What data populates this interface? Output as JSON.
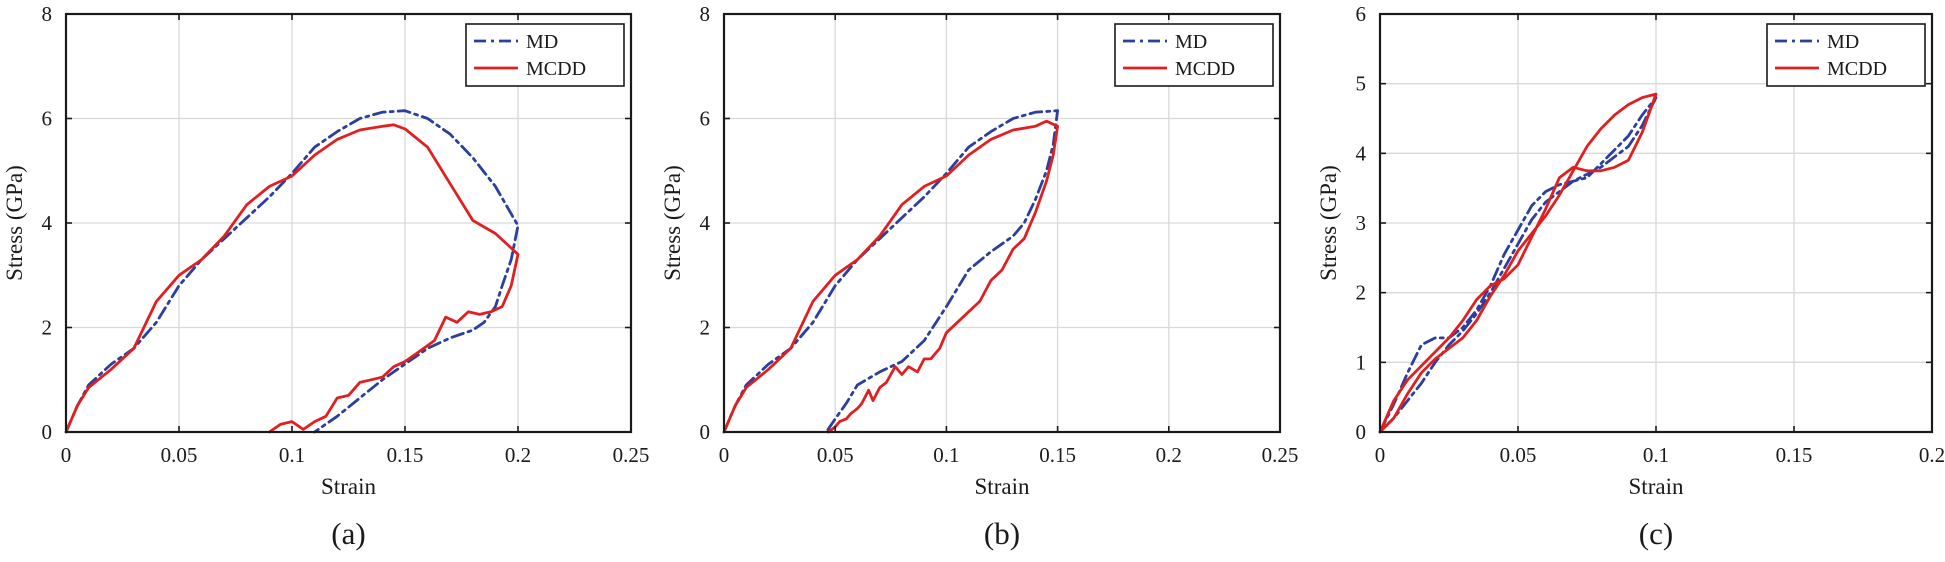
{
  "chart_data": [
    {
      "type": "line",
      "panel_label": "(a)",
      "xlabel": "Strain",
      "ylabel": "Stress (GPa)",
      "xlim": [
        0,
        0.25
      ],
      "ylim": [
        0,
        8
      ],
      "xticks": [
        0,
        0.05,
        0.1,
        0.15,
        0.2,
        0.25
      ],
      "xtick_labels": [
        "0",
        "0.05",
        "0.1",
        "0.15",
        "0.2",
        "0.25"
      ],
      "yticks": [
        0,
        2,
        4,
        6,
        8
      ],
      "ytick_labels": [
        "0",
        "2",
        "4",
        "6",
        "8"
      ],
      "grid": true,
      "legend_position": "top-right",
      "series": [
        {
          "name": "MD",
          "color": "#2b3f9e",
          "line_style": "dash-dot",
          "points": [
            [
              0,
              0
            ],
            [
              0.005,
              0.5
            ],
            [
              0.01,
              0.9
            ],
            [
              0.02,
              1.3
            ],
            [
              0.03,
              1.6
            ],
            [
              0.04,
              2.1
            ],
            [
              0.05,
              2.8
            ],
            [
              0.06,
              3.3
            ],
            [
              0.07,
              3.7
            ],
            [
              0.08,
              4.1
            ],
            [
              0.09,
              4.5
            ],
            [
              0.1,
              4.95
            ],
            [
              0.11,
              5.45
            ],
            [
              0.12,
              5.75
            ],
            [
              0.13,
              6.0
            ],
            [
              0.14,
              6.12
            ],
            [
              0.15,
              6.15
            ],
            [
              0.16,
              6.0
            ],
            [
              0.17,
              5.7
            ],
            [
              0.18,
              5.25
            ],
            [
              0.19,
              4.7
            ],
            [
              0.2,
              3.95
            ],
            [
              0.197,
              3.3
            ],
            [
              0.193,
              2.8
            ],
            [
              0.19,
              2.4
            ],
            [
              0.185,
              2.1
            ],
            [
              0.18,
              1.95
            ],
            [
              0.17,
              1.8
            ],
            [
              0.16,
              1.6
            ],
            [
              0.15,
              1.3
            ],
            [
              0.14,
              1.0
            ],
            [
              0.13,
              0.65
            ],
            [
              0.12,
              0.3
            ],
            [
              0.11,
              0.0
            ]
          ]
        },
        {
          "name": "MCDD",
          "color": "#e02020",
          "line_style": "solid",
          "points": [
            [
              0,
              0
            ],
            [
              0.005,
              0.5
            ],
            [
              0.01,
              0.85
            ],
            [
              0.02,
              1.2
            ],
            [
              0.03,
              1.6
            ],
            [
              0.04,
              2.5
            ],
            [
              0.05,
              3.0
            ],
            [
              0.06,
              3.3
            ],
            [
              0.07,
              3.75
            ],
            [
              0.08,
              4.35
            ],
            [
              0.09,
              4.7
            ],
            [
              0.1,
              4.9
            ],
            [
              0.11,
              5.3
            ],
            [
              0.12,
              5.6
            ],
            [
              0.13,
              5.78
            ],
            [
              0.14,
              5.85
            ],
            [
              0.145,
              5.88
            ],
            [
              0.15,
              5.8
            ],
            [
              0.16,
              5.45
            ],
            [
              0.17,
              4.75
            ],
            [
              0.18,
              4.05
            ],
            [
              0.19,
              3.8
            ],
            [
              0.2,
              3.4
            ],
            [
              0.197,
              2.8
            ],
            [
              0.193,
              2.4
            ],
            [
              0.188,
              2.3
            ],
            [
              0.183,
              2.25
            ],
            [
              0.178,
              2.3
            ],
            [
              0.173,
              2.1
            ],
            [
              0.168,
              2.2
            ],
            [
              0.163,
              1.75
            ],
            [
              0.155,
              1.5
            ],
            [
              0.15,
              1.35
            ],
            [
              0.145,
              1.25
            ],
            [
              0.14,
              1.05
            ],
            [
              0.135,
              1.0
            ],
            [
              0.13,
              0.95
            ],
            [
              0.125,
              0.7
            ],
            [
              0.12,
              0.65
            ],
            [
              0.115,
              0.3
            ],
            [
              0.11,
              0.2
            ],
            [
              0.105,
              0.05
            ],
            [
              0.1,
              0.2
            ],
            [
              0.095,
              0.15
            ],
            [
              0.09,
              0.0
            ]
          ]
        }
      ]
    },
    {
      "type": "line",
      "panel_label": "(b)",
      "xlabel": "Strain",
      "ylabel": "Stress (GPa)",
      "xlim": [
        0,
        0.25
      ],
      "ylim": [
        0,
        8
      ],
      "xticks": [
        0,
        0.05,
        0.1,
        0.15,
        0.2,
        0.25
      ],
      "xtick_labels": [
        "0",
        "0.05",
        "0.1",
        "0.15",
        "0.2",
        "0.25"
      ],
      "yticks": [
        0,
        2,
        4,
        6,
        8
      ],
      "ytick_labels": [
        "0",
        "2",
        "4",
        "6",
        "8"
      ],
      "grid": true,
      "legend_position": "top-right",
      "series": [
        {
          "name": "MD",
          "color": "#2b3f9e",
          "line_style": "dash-dot",
          "points": [
            [
              0,
              0
            ],
            [
              0.005,
              0.5
            ],
            [
              0.01,
              0.9
            ],
            [
              0.02,
              1.3
            ],
            [
              0.03,
              1.6
            ],
            [
              0.04,
              2.1
            ],
            [
              0.05,
              2.8
            ],
            [
              0.06,
              3.3
            ],
            [
              0.07,
              3.7
            ],
            [
              0.08,
              4.1
            ],
            [
              0.09,
              4.5
            ],
            [
              0.1,
              4.95
            ],
            [
              0.11,
              5.45
            ],
            [
              0.12,
              5.75
            ],
            [
              0.13,
              6.0
            ],
            [
              0.14,
              6.12
            ],
            [
              0.15,
              6.15
            ],
            [
              0.148,
              5.5
            ],
            [
              0.145,
              5.0
            ],
            [
              0.14,
              4.45
            ],
            [
              0.135,
              4.0
            ],
            [
              0.13,
              3.75
            ],
            [
              0.12,
              3.45
            ],
            [
              0.11,
              3.1
            ],
            [
              0.1,
              2.4
            ],
            [
              0.09,
              1.75
            ],
            [
              0.08,
              1.35
            ],
            [
              0.07,
              1.15
            ],
            [
              0.06,
              0.9
            ],
            [
              0.055,
              0.55
            ],
            [
              0.05,
              0.25
            ],
            [
              0.046,
              0.0
            ]
          ]
        },
        {
          "name": "MCDD",
          "color": "#e02020",
          "line_style": "solid",
          "points": [
            [
              0,
              0
            ],
            [
              0.005,
              0.5
            ],
            [
              0.01,
              0.85
            ],
            [
              0.02,
              1.2
            ],
            [
              0.03,
              1.6
            ],
            [
              0.04,
              2.5
            ],
            [
              0.05,
              3.0
            ],
            [
              0.06,
              3.3
            ],
            [
              0.07,
              3.75
            ],
            [
              0.08,
              4.35
            ],
            [
              0.09,
              4.7
            ],
            [
              0.1,
              4.9
            ],
            [
              0.11,
              5.3
            ],
            [
              0.12,
              5.6
            ],
            [
              0.13,
              5.78
            ],
            [
              0.14,
              5.85
            ],
            [
              0.145,
              5.95
            ],
            [
              0.15,
              5.85
            ],
            [
              0.148,
              5.3
            ],
            [
              0.145,
              4.8
            ],
            [
              0.14,
              4.2
            ],
            [
              0.135,
              3.7
            ],
            [
              0.13,
              3.5
            ],
            [
              0.125,
              3.1
            ],
            [
              0.12,
              2.9
            ],
            [
              0.115,
              2.5
            ],
            [
              0.11,
              2.3
            ],
            [
              0.105,
              2.1
            ],
            [
              0.1,
              1.9
            ],
            [
              0.097,
              1.6
            ],
            [
              0.093,
              1.4
            ],
            [
              0.09,
              1.4
            ],
            [
              0.087,
              1.15
            ],
            [
              0.083,
              1.25
            ],
            [
              0.08,
              1.1
            ],
            [
              0.077,
              1.25
            ],
            [
              0.073,
              0.95
            ],
            [
              0.07,
              0.85
            ],
            [
              0.067,
              0.6
            ],
            [
              0.065,
              0.8
            ],
            [
              0.062,
              0.55
            ],
            [
              0.06,
              0.45
            ],
            [
              0.057,
              0.35
            ],
            [
              0.055,
              0.25
            ],
            [
              0.052,
              0.2
            ],
            [
              0.05,
              0.1
            ],
            [
              0.047,
              0.0
            ]
          ]
        }
      ]
    },
    {
      "type": "line",
      "panel_label": "(c)",
      "xlabel": "Strain",
      "ylabel": "Stress (GPa)",
      "xlim": [
        0,
        0.2
      ],
      "ylim": [
        0,
        6
      ],
      "xticks": [
        0,
        0.05,
        0.1,
        0.15,
        0.2
      ],
      "xtick_labels": [
        "0",
        "0.05",
        "0.1",
        "0.15",
        "0.2"
      ],
      "yticks": [
        0,
        1,
        2,
        3,
        4,
        5,
        6
      ],
      "ytick_labels": [
        "0",
        "1",
        "2",
        "3",
        "4",
        "5",
        "6"
      ],
      "grid": true,
      "legend_position": "top-right",
      "series": [
        {
          "name": "MD",
          "color": "#2b3f9e",
          "line_style": "dash-dot",
          "points": [
            [
              0,
              0
            ],
            [
              0.005,
              0.4
            ],
            [
              0.01,
              0.85
            ],
            [
              0.015,
              1.25
            ],
            [
              0.02,
              1.35
            ],
            [
              0.025,
              1.35
            ],
            [
              0.03,
              1.5
            ],
            [
              0.035,
              1.75
            ],
            [
              0.04,
              2.1
            ],
            [
              0.045,
              2.55
            ],
            [
              0.05,
              2.9
            ],
            [
              0.055,
              3.25
            ],
            [
              0.06,
              3.45
            ],
            [
              0.065,
              3.55
            ],
            [
              0.07,
              3.6
            ],
            [
              0.075,
              3.65
            ],
            [
              0.08,
              3.85
            ],
            [
              0.085,
              4.05
            ],
            [
              0.09,
              4.25
            ],
            [
              0.095,
              4.55
            ],
            [
              0.1,
              4.8
            ],
            [
              0.095,
              4.4
            ],
            [
              0.09,
              4.1
            ],
            [
              0.085,
              3.95
            ],
            [
              0.08,
              3.8
            ],
            [
              0.075,
              3.7
            ],
            [
              0.07,
              3.6
            ],
            [
              0.065,
              3.45
            ],
            [
              0.06,
              3.3
            ],
            [
              0.055,
              3.05
            ],
            [
              0.05,
              2.7
            ],
            [
              0.045,
              2.35
            ],
            [
              0.04,
              2.0
            ],
            [
              0.035,
              1.7
            ],
            [
              0.03,
              1.45
            ],
            [
              0.025,
              1.25
            ],
            [
              0.02,
              1.0
            ],
            [
              0.015,
              0.7
            ],
            [
              0.01,
              0.45
            ],
            [
              0.005,
              0.2
            ],
            [
              0,
              0
            ]
          ]
        },
        {
          "name": "MCDD",
          "color": "#e02020",
          "line_style": "solid",
          "points": [
            [
              0,
              0
            ],
            [
              0.005,
              0.45
            ],
            [
              0.01,
              0.75
            ],
            [
              0.015,
              0.95
            ],
            [
              0.02,
              1.15
            ],
            [
              0.025,
              1.35
            ],
            [
              0.03,
              1.6
            ],
            [
              0.035,
              1.9
            ],
            [
              0.04,
              2.1
            ],
            [
              0.045,
              2.2
            ],
            [
              0.05,
              2.4
            ],
            [
              0.055,
              2.8
            ],
            [
              0.06,
              3.2
            ],
            [
              0.065,
              3.65
            ],
            [
              0.07,
              3.8
            ],
            [
              0.075,
              3.75
            ],
            [
              0.08,
              3.75
            ],
            [
              0.085,
              3.8
            ],
            [
              0.09,
              3.9
            ],
            [
              0.095,
              4.3
            ],
            [
              0.1,
              4.85
            ],
            [
              0.095,
              4.8
            ],
            [
              0.09,
              4.7
            ],
            [
              0.085,
              4.55
            ],
            [
              0.08,
              4.35
            ],
            [
              0.075,
              4.1
            ],
            [
              0.07,
              3.75
            ],
            [
              0.065,
              3.4
            ],
            [
              0.06,
              3.1
            ],
            [
              0.055,
              2.85
            ],
            [
              0.05,
              2.6
            ],
            [
              0.045,
              2.25
            ],
            [
              0.04,
              1.95
            ],
            [
              0.035,
              1.6
            ],
            [
              0.03,
              1.35
            ],
            [
              0.025,
              1.2
            ],
            [
              0.02,
              1.05
            ],
            [
              0.015,
              0.85
            ],
            [
              0.01,
              0.55
            ],
            [
              0.005,
              0.2
            ],
            [
              0,
              0
            ]
          ]
        }
      ]
    }
  ]
}
